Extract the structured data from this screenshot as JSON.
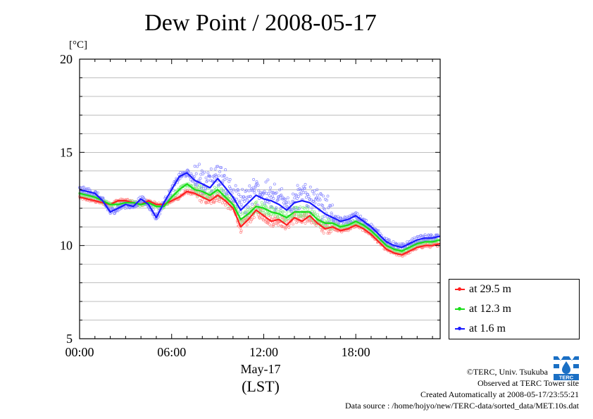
{
  "title": "Dew Point / 2008-05-17",
  "unit_label": "[°C]",
  "x_date_label": "May-17",
  "x_tz_label": "(LST)",
  "footer": {
    "credit": "©TERC, Univ. Tsukuba",
    "observed": "Observed at TERC Tower site",
    "created": "Created Automatically at 2008-05-17/23:55:21",
    "source": "Data source : /home/hojyo/new/TERC-data/sorted_data/MET.10s.dat"
  },
  "logo_text": "TERC",
  "colors": {
    "s1": "#ff2020",
    "s2": "#18dd18",
    "s3": "#1a1aff",
    "axis": "#000000",
    "grid": "#999999"
  },
  "chart_data": {
    "type": "line",
    "title": "Dew Point / 2008-05-17",
    "xlabel": "May-17 (LST)",
    "ylabel": "[°C]",
    "xlim": [
      0,
      23.5
    ],
    "ylim": [
      5,
      20
    ],
    "x_ticks": [
      0,
      6,
      12,
      18
    ],
    "x_tick_labels": [
      "00:00",
      "06:00",
      "12:00",
      "18:00"
    ],
    "y_ticks": [
      5,
      10,
      15,
      20
    ],
    "y_tick_labels": [
      "5",
      "10",
      "15",
      "20"
    ],
    "grid": true,
    "legend_position": "lower-right outside",
    "x": [
      0.0,
      0.5,
      1.0,
      1.5,
      2.0,
      2.5,
      3.0,
      3.5,
      4.0,
      4.5,
      5.0,
      5.5,
      6.0,
      6.5,
      7.0,
      7.5,
      8.0,
      8.5,
      9.0,
      9.5,
      10.0,
      10.5,
      11.0,
      11.5,
      12.0,
      12.5,
      13.0,
      13.5,
      14.0,
      14.5,
      15.0,
      15.5,
      16.0,
      16.5,
      17.0,
      17.5,
      18.0,
      18.5,
      19.0,
      19.5,
      20.0,
      20.5,
      21.0,
      21.5,
      22.0,
      22.5,
      23.0,
      23.5
    ],
    "series": [
      {
        "name": "at 29.5 m",
        "color": "#ff2020",
        "values": [
          12.6,
          12.5,
          12.4,
          12.3,
          12.2,
          12.4,
          12.4,
          12.3,
          12.2,
          12.4,
          12.2,
          12.2,
          12.4,
          12.6,
          12.9,
          12.8,
          12.6,
          12.4,
          12.7,
          12.4,
          12.0,
          11.0,
          11.4,
          11.9,
          11.6,
          11.3,
          11.4,
          11.1,
          11.5,
          11.3,
          11.6,
          11.2,
          10.9,
          11.0,
          10.8,
          10.9,
          11.1,
          10.9,
          10.6,
          10.2,
          9.8,
          9.6,
          9.5,
          9.7,
          9.9,
          10.0,
          10.0,
          10.1
        ]
      },
      {
        "name": "at 12.3 m",
        "color": "#18dd18",
        "values": [
          12.8,
          12.7,
          12.6,
          12.4,
          12.2,
          12.2,
          12.3,
          12.3,
          12.2,
          12.3,
          12.1,
          12.1,
          12.6,
          13.0,
          13.3,
          13.0,
          12.9,
          12.7,
          13.0,
          12.6,
          12.2,
          11.4,
          11.7,
          12.1,
          12.0,
          11.8,
          11.7,
          11.5,
          11.8,
          11.8,
          11.8,
          11.4,
          11.2,
          11.2,
          11.0,
          11.1,
          11.3,
          11.1,
          10.8,
          10.4,
          10.0,
          9.8,
          9.7,
          9.9,
          10.1,
          10.2,
          10.2,
          10.3
        ]
      },
      {
        "name": "at 1.6 m",
        "color": "#1a1aff",
        "values": [
          13.0,
          12.9,
          12.8,
          12.4,
          11.8,
          12.0,
          12.2,
          12.1,
          12.5,
          12.2,
          11.5,
          12.3,
          13.0,
          13.7,
          13.9,
          13.5,
          13.3,
          13.1,
          13.6,
          13.1,
          12.6,
          11.9,
          12.3,
          12.7,
          12.5,
          12.4,
          12.2,
          11.9,
          12.3,
          12.4,
          12.3,
          12.0,
          11.7,
          11.5,
          11.3,
          11.4,
          11.6,
          11.3,
          11.0,
          10.6,
          10.2,
          10.0,
          9.9,
          10.1,
          10.3,
          10.4,
          10.4,
          10.5
        ]
      }
    ]
  }
}
